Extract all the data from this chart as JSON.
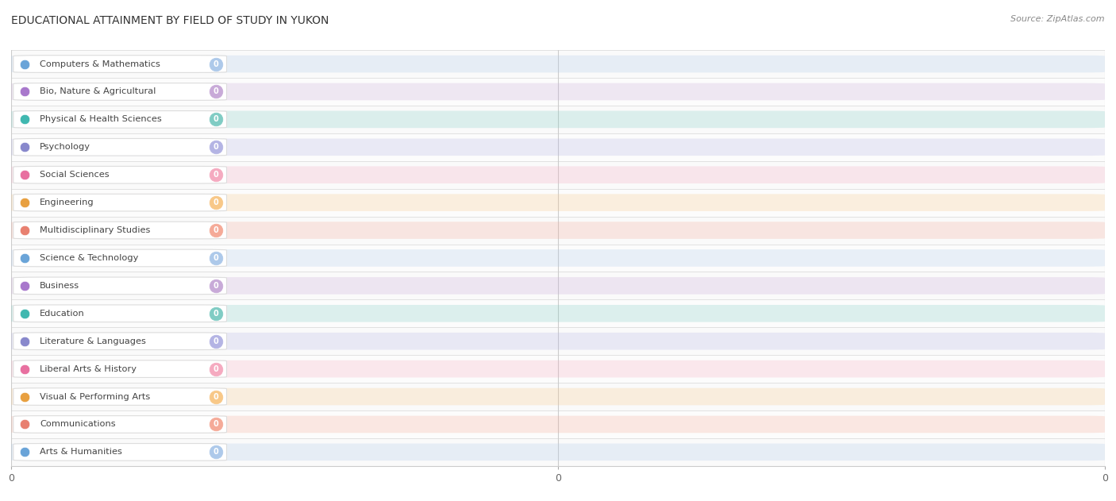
{
  "title": "EDUCATIONAL ATTAINMENT BY FIELD OF STUDY IN YUKON",
  "source": "Source: ZipAtlas.com",
  "categories": [
    "Computers & Mathematics",
    "Bio, Nature & Agricultural",
    "Physical & Health Sciences",
    "Psychology",
    "Social Sciences",
    "Engineering",
    "Multidisciplinary Studies",
    "Science & Technology",
    "Business",
    "Education",
    "Literature & Languages",
    "Liberal Arts & History",
    "Visual & Performing Arts",
    "Communications",
    "Arts & Humanities"
  ],
  "values": [
    0,
    0,
    0,
    0,
    0,
    0,
    0,
    0,
    0,
    0,
    0,
    0,
    0,
    0,
    0
  ],
  "bar_colors": [
    "#adc9ea",
    "#c8aad8",
    "#80ccc4",
    "#b4b4e4",
    "#f5aac0",
    "#f8c888",
    "#f5aa98",
    "#adc9ea",
    "#c8aad8",
    "#80ccc4",
    "#b4b4e4",
    "#f5aac0",
    "#f8c888",
    "#f5aa98",
    "#adc9ea"
  ],
  "dot_colors": [
    "#6aA4d8",
    "#a878cc",
    "#40b8b0",
    "#8888cc",
    "#e870a0",
    "#e8a040",
    "#e88070",
    "#6aA4d8",
    "#a878cc",
    "#40b8b0",
    "#8888cc",
    "#e870a0",
    "#e8a040",
    "#e88070",
    "#6aA4d8"
  ],
  "background_color": "#ffffff",
  "plot_bg_color": "#f5f5f5",
  "title_fontsize": 10,
  "tick_fontsize": 9,
  "source_fontsize": 8
}
